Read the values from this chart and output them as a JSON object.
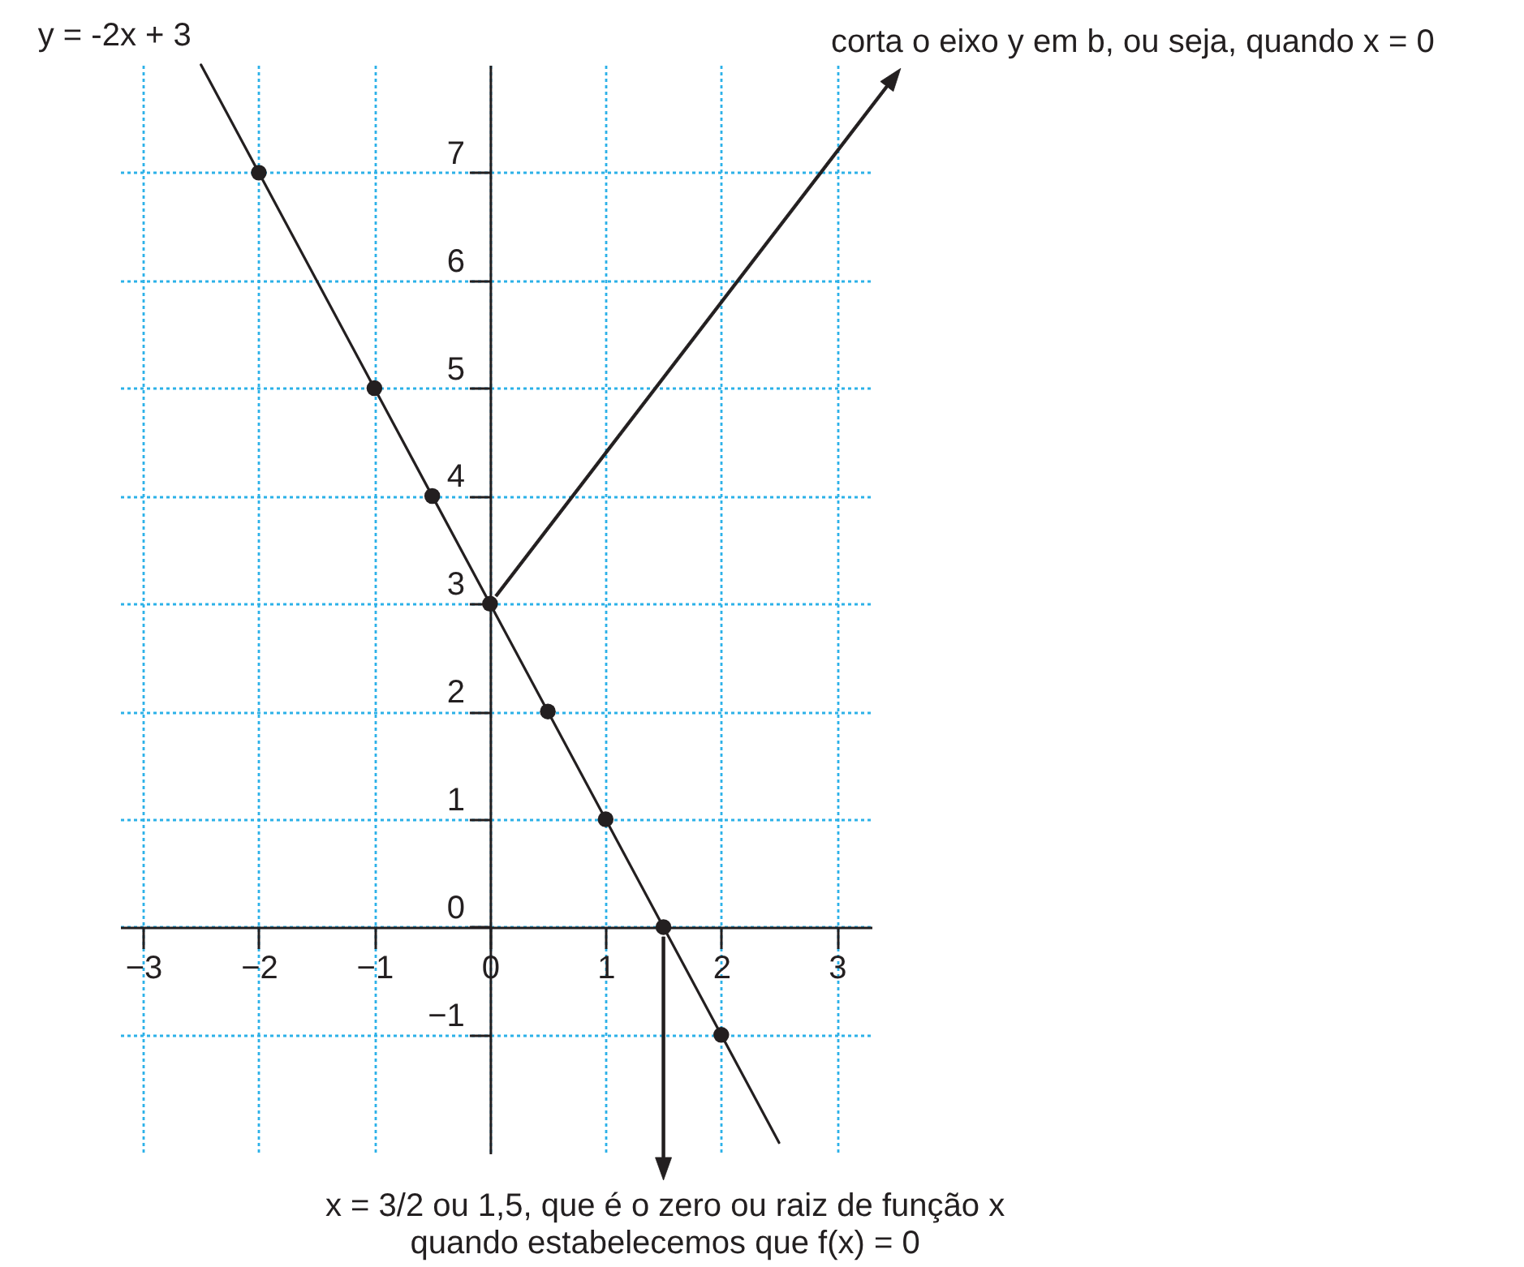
{
  "chart_data": {
    "type": "line",
    "annotations": [
      "corta o eixo y em b, ou seja, quando x = 0",
      "x = 3/2 ou 1,5, que é o zero ou raiz de função x\nquando estabelecemos que f(x) = 0"
    ],
    "series": [
      {
        "name": "y = -2x + 3",
        "type": "line",
        "color": "#231f20",
        "x": [
          -2.5,
          2.5
        ],
        "values": [
          8,
          -2
        ]
      },
      {
        "type": "scatter",
        "color": "#231f20",
        "marker": "circle",
        "x": [
          -2,
          -1,
          -0.5,
          0,
          0.5,
          1,
          1.5,
          2
        ],
        "values": [
          7,
          5,
          4,
          3,
          2,
          1,
          0,
          -1
        ]
      }
    ],
    "xlim": [
      -3.2,
      3.3
    ],
    "ylim": [
      -2.1,
      8
    ],
    "xticks": [
      -3,
      -2,
      -1,
      0,
      1,
      2,
      3
    ],
    "yticks": [
      -1,
      0,
      1,
      2,
      3,
      4,
      5,
      6,
      7
    ],
    "grid": true
  }
}
